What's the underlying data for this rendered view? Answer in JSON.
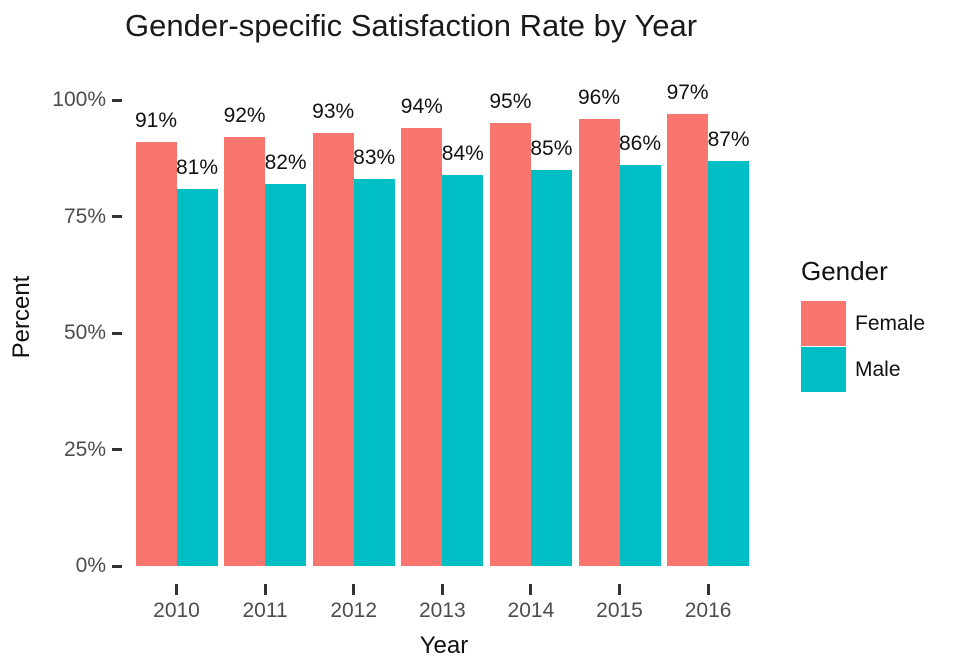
{
  "chart_data": {
    "type": "bar",
    "title": "Gender-specific Satisfaction Rate by Year",
    "xlabel": "Year",
    "ylabel": "Percent",
    "categories": [
      "2010",
      "2011",
      "2012",
      "2013",
      "2014",
      "2015",
      "2016"
    ],
    "series": [
      {
        "name": "Female",
        "color": "#F8766D",
        "values": [
          91,
          92,
          93,
          94,
          95,
          96,
          97
        ]
      },
      {
        "name": "Male",
        "color": "#00BFC4",
        "values": [
          81,
          82,
          83,
          84,
          85,
          86,
          87
        ]
      }
    ],
    "bar_labels": [
      "91%",
      "92%",
      "93%",
      "94%",
      "95%",
      "96%",
      "97%",
      "81%",
      "82%",
      "83%",
      "84%",
      "85%",
      "86%",
      "87%"
    ],
    "y_ticks": [
      0,
      25,
      50,
      75,
      100
    ],
    "y_tick_labels": [
      "0%",
      "25%",
      "50%",
      "75%",
      "100%"
    ],
    "ylim": [
      0,
      100
    ],
    "grid": false,
    "legend": {
      "title": "Gender",
      "position": "right"
    },
    "colors": {
      "female": "#F8766D",
      "male": "#00BFC4",
      "axis_text": "#4d4d4d",
      "tick_mark": "#333333",
      "label_text": "#111111"
    }
  }
}
